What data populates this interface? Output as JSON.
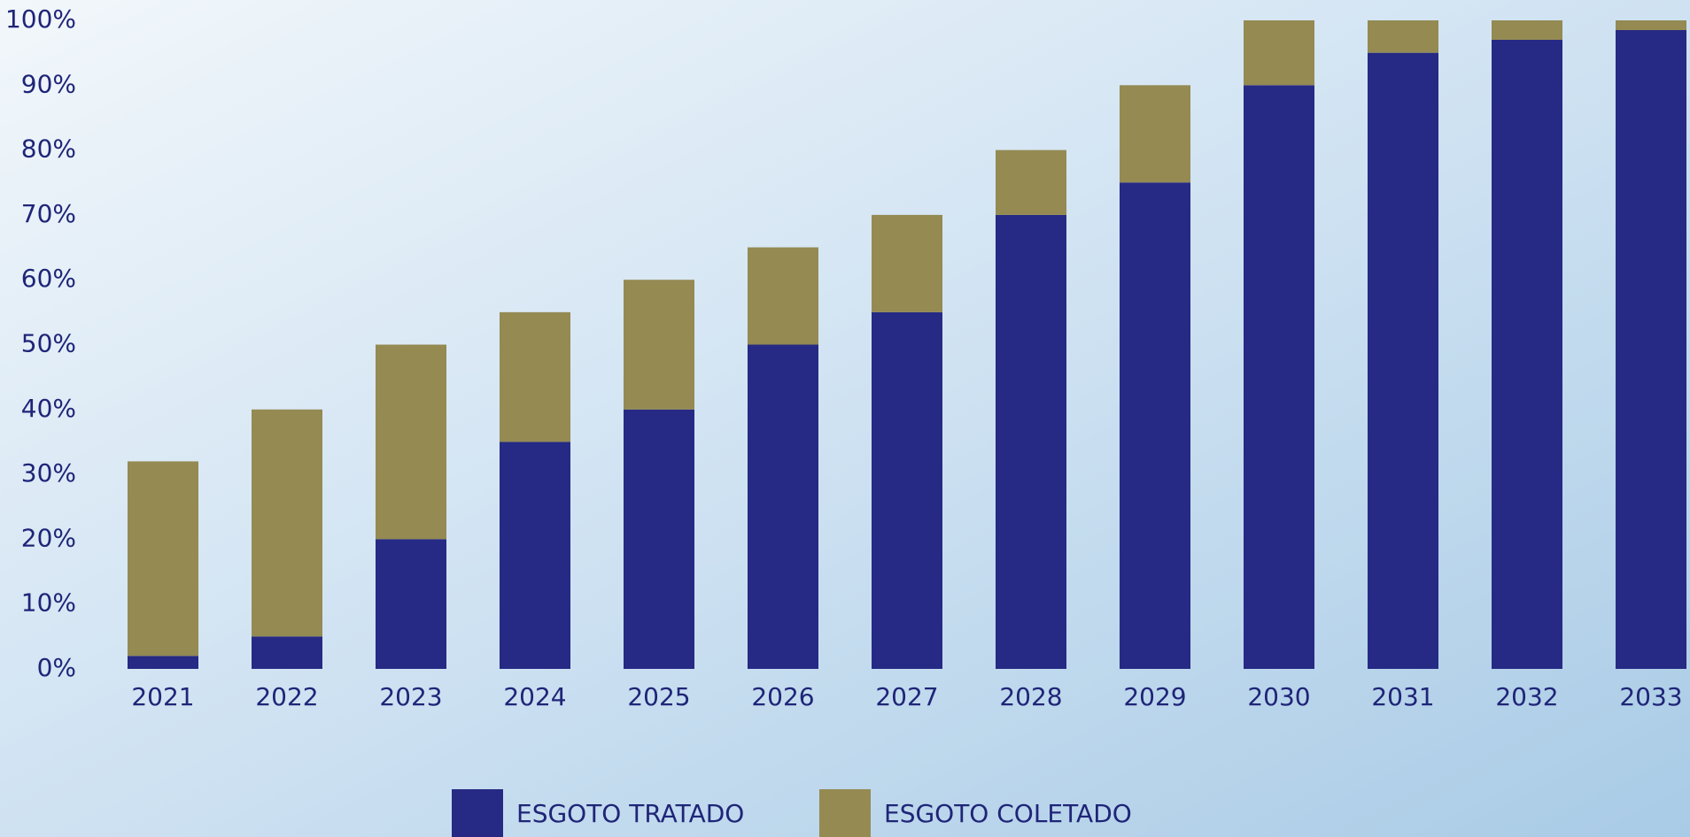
{
  "chart_data": {
    "type": "stacked-bar",
    "categories": [
      "2021",
      "2022",
      "2023",
      "2024",
      "2025",
      "2026",
      "2027",
      "2028",
      "2029",
      "2030",
      "2031",
      "2032",
      "2033"
    ],
    "series": [
      {
        "name": "ESGOTO TRATADO",
        "color": "#262a84",
        "values": [
          2,
          5,
          20,
          35,
          40,
          50,
          55,
          70,
          75,
          90,
          95,
          97,
          98.5
        ]
      },
      {
        "name": "ESGOTO COLETADO",
        "color": "#948a52",
        "values": [
          30,
          35,
          30,
          20,
          20,
          15,
          15,
          10,
          15,
          10,
          5,
          3,
          1.5
        ]
      }
    ],
    "ylim": [
      0,
      100
    ],
    "yticks": [
      {
        "value": 0,
        "label": "0%"
      },
      {
        "value": 10,
        "label": "10%"
      },
      {
        "value": 20,
        "label": "20%"
      },
      {
        "value": 30,
        "label": "30%"
      },
      {
        "value": 40,
        "label": "40%"
      },
      {
        "value": 50,
        "label": "50%"
      },
      {
        "value": 60,
        "label": "60%"
      },
      {
        "value": 70,
        "label": "70%"
      },
      {
        "value": 80,
        "label": "80%"
      },
      {
        "value": 90,
        "label": "90%"
      },
      {
        "value": 100,
        "label": "100%"
      }
    ]
  }
}
